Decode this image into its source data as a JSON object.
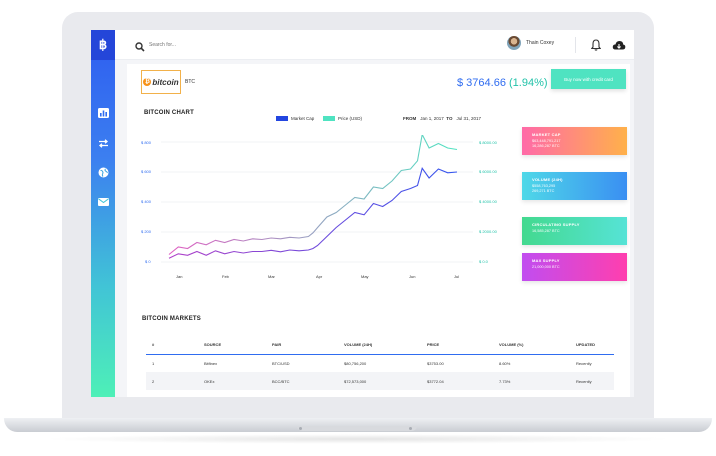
{
  "sidebar": {
    "logo_glyph": "฿",
    "items": [
      {
        "icon": "bar-chart-icon"
      },
      {
        "icon": "transfer-arrows-icon"
      },
      {
        "icon": "globe-icon"
      },
      {
        "icon": "mail-icon"
      }
    ]
  },
  "topbar": {
    "search_placeholder": "Search for...",
    "user_name": "Thain Coxey"
  },
  "coin": {
    "logo_text": "bitcoin",
    "symbol": "BTC",
    "price": "$ 3764.66",
    "change": "(1.94%)"
  },
  "buy_button_label": "Buy now with credit card",
  "chart_title": "BITCOIN CHART",
  "filters": {
    "from_label": "FROM",
    "from_date": "Jan 1, 2017",
    "to_label": "TO",
    "to_date": "Jul 31, 2017"
  },
  "chart_data": {
    "type": "line",
    "xlabel": "",
    "ylabel": "",
    "x_ticks": [
      "Jan",
      "Feb",
      "Mar",
      "Apr",
      "May",
      "Jun",
      "Jul"
    ],
    "y_left_ticks": [
      "$ 0",
      "$ 200",
      "$ 400",
      "$ 600",
      "$ 800"
    ],
    "y_right_ticks": [
      "$ 0.0",
      "$ 2000.00",
      "$ 4000.00",
      "$ 6000.00",
      "$ 8000.00"
    ],
    "ylim_left": [
      0,
      800
    ],
    "ylim_right": [
      0,
      8000
    ],
    "grid": true,
    "legend_position": "top-center",
    "series": [
      {
        "name": "Market Cap",
        "color": "#2f6cf0",
        "axis": "left",
        "x": [
          0,
          0.2,
          0.4,
          0.6,
          0.8,
          1.0,
          1.2,
          1.4,
          1.6,
          1.8,
          2.0,
          2.2,
          2.4,
          2.6,
          2.8,
          3.0,
          3.1,
          3.2,
          3.4,
          3.6,
          3.8,
          4.0,
          4.2,
          4.4,
          4.6,
          4.8,
          5.0,
          5.2,
          5.35,
          5.45,
          5.6,
          5.8,
          6.0,
          6.2
        ],
        "values": [
          25,
          55,
          45,
          70,
          45,
          75,
          55,
          70,
          60,
          70,
          70,
          78,
          68,
          80,
          75,
          80,
          90,
          110,
          170,
          230,
          280,
          330,
          315,
          390,
          370,
          410,
          470,
          490,
          510,
          625,
          560,
          620,
          595,
          600
        ]
      },
      {
        "name": "Price (USD)",
        "color": "#4fe3c1",
        "axis": "right",
        "x": [
          0,
          0.2,
          0.4,
          0.6,
          0.8,
          1.0,
          1.2,
          1.4,
          1.6,
          1.8,
          2.0,
          2.2,
          2.4,
          2.6,
          2.8,
          3.0,
          3.1,
          3.2,
          3.4,
          3.6,
          3.8,
          4.0,
          4.2,
          4.4,
          4.6,
          4.8,
          5.0,
          5.2,
          5.35,
          5.45,
          5.6,
          5.8,
          6.0,
          6.2
        ],
        "values": [
          500,
          1000,
          900,
          1300,
          1150,
          1450,
          1300,
          1500,
          1400,
          1550,
          1500,
          1600,
          1550,
          1650,
          1600,
          1700,
          1950,
          2300,
          3000,
          3300,
          3800,
          4300,
          4200,
          5000,
          4900,
          5400,
          6100,
          6200,
          6750,
          8500,
          7600,
          7900,
          7600,
          7500
        ]
      }
    ]
  },
  "stats": [
    {
      "title": "MARKET CAP",
      "lines": [
        "$63,448,791,217",
        "16,286,287 BTC"
      ],
      "grad": [
        "#ff6aa8",
        "#ffb14a"
      ]
    },
    {
      "title": "VOLUME (24H)",
      "lines": [
        "$558,763,295",
        "269,271 BTC"
      ],
      "grad": [
        "#4fd8e8",
        "#3a8ff2"
      ]
    },
    {
      "title": "CIRCULATING SUPPLY",
      "lines": [
        "16,585,287 BTC"
      ],
      "grad": [
        "#43d98f",
        "#56e3d6"
      ]
    },
    {
      "title": "MAX SUPPLY",
      "lines": [
        "21,000,000 BTC"
      ],
      "grad": [
        "#c14df0",
        "#ff3fae"
      ]
    }
  ],
  "markets_title": "BITCOIN MARKETS",
  "markets": {
    "headers": [
      "#",
      "SOURCE",
      "PAIR",
      "VOLUME (24H)",
      "PRICE",
      "VOLUME (%)",
      "UPDATED"
    ],
    "rows": [
      [
        "1",
        "Bitfinex",
        "BTC/USD",
        "$80,756,200",
        "$3753.00",
        "8.60%",
        "Recently"
      ],
      [
        "2",
        "OKEx",
        "BCC/BTC",
        "$72,573,000",
        "$3772.04",
        "7.73%",
        "Recently"
      ]
    ]
  }
}
